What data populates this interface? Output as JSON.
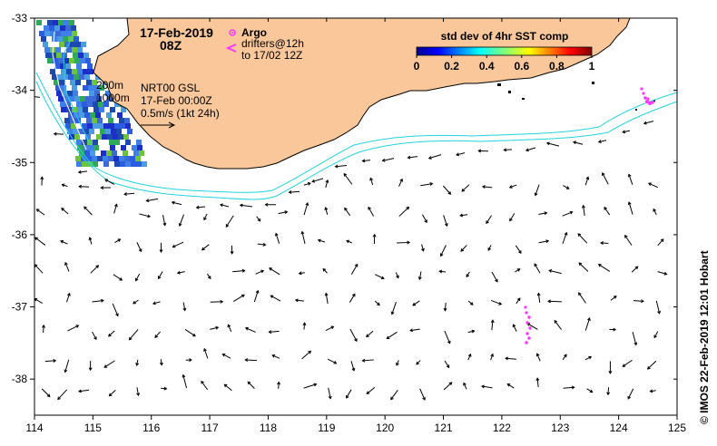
{
  "title": {
    "date": "17-Feb-2019",
    "time": "08Z"
  },
  "legend": {
    "argo_label": "Argo",
    "drifters_line1": "drifters@12h",
    "drifters_line2": "to 17/02 12Z",
    "colorbar_title": "std dev of 4hr SST comp",
    "colorbar_ticks": [
      "0",
      "0.2",
      "0.4",
      "0.6",
      "0.8",
      "1"
    ],
    "colorbar_range": [
      0,
      1
    ]
  },
  "depth_labels": [
    "200m",
    "1000m"
  ],
  "current_info": {
    "line1": "NRT00 GSL",
    "line2": "17-Feb 00:00Z",
    "scale": "0.5m/s (1kt 24h)"
  },
  "credit": "© IMOS 22-Feb-2019 12:01 Hobart",
  "axes": {
    "lon_range": [
      114,
      125
    ],
    "lat_range": [
      -38.5,
      -33
    ],
    "x_ticks": [
      "114",
      "115",
      "116",
      "117",
      "118",
      "119",
      "120",
      "121",
      "122",
      "123",
      "124",
      "125"
    ],
    "y_ticks": [
      "-33",
      "-34",
      "-35",
      "-36",
      "-37",
      "-38"
    ]
  },
  "colors": {
    "land": "#f9c79a",
    "land_outline": "#000000",
    "contour": "#22d4dd",
    "drifter": "#ff33ff",
    "arrow": "#000000"
  }
}
